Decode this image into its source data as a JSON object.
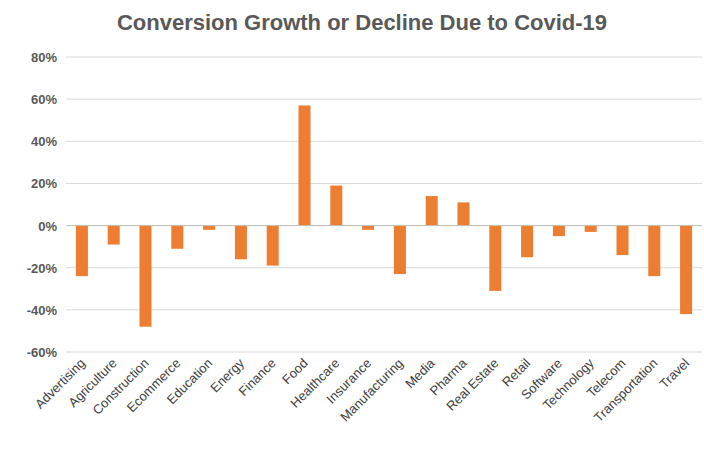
{
  "chart_data": {
    "type": "bar",
    "title": "Conversion Growth or Decline Due to Covid-19",
    "categories": [
      "Advertising",
      "Agriculture",
      "Construction",
      "Ecommerce",
      "Education",
      "Energy",
      "Finance",
      "Food",
      "Healthcare",
      "Insurance",
      "Manufacturing",
      "Media",
      "Pharma",
      "Real Estate",
      "Retail",
      "Software",
      "Technology",
      "Telecom",
      "Transportation",
      "Travel"
    ],
    "values": [
      -24,
      -9,
      -48,
      -11,
      -2,
      -16,
      -19,
      57,
      19,
      -2,
      -23,
      14,
      11,
      -31,
      -15,
      -5,
      -3,
      -14,
      -24,
      -42
    ],
    "color": "#ed7d31",
    "ylim": [
      -60,
      80
    ],
    "yticks": [
      {
        "value": -60,
        "label": "-60%"
      },
      {
        "value": -40,
        "label": "-40%"
      },
      {
        "value": -20,
        "label": "-20%"
      },
      {
        "value": 0,
        "label": "0%"
      },
      {
        "value": 20,
        "label": "20%"
      },
      {
        "value": 40,
        "label": "40%"
      },
      {
        "value": 60,
        "label": "60%"
      },
      {
        "value": 80,
        "label": "80%"
      }
    ],
    "grid": true
  }
}
